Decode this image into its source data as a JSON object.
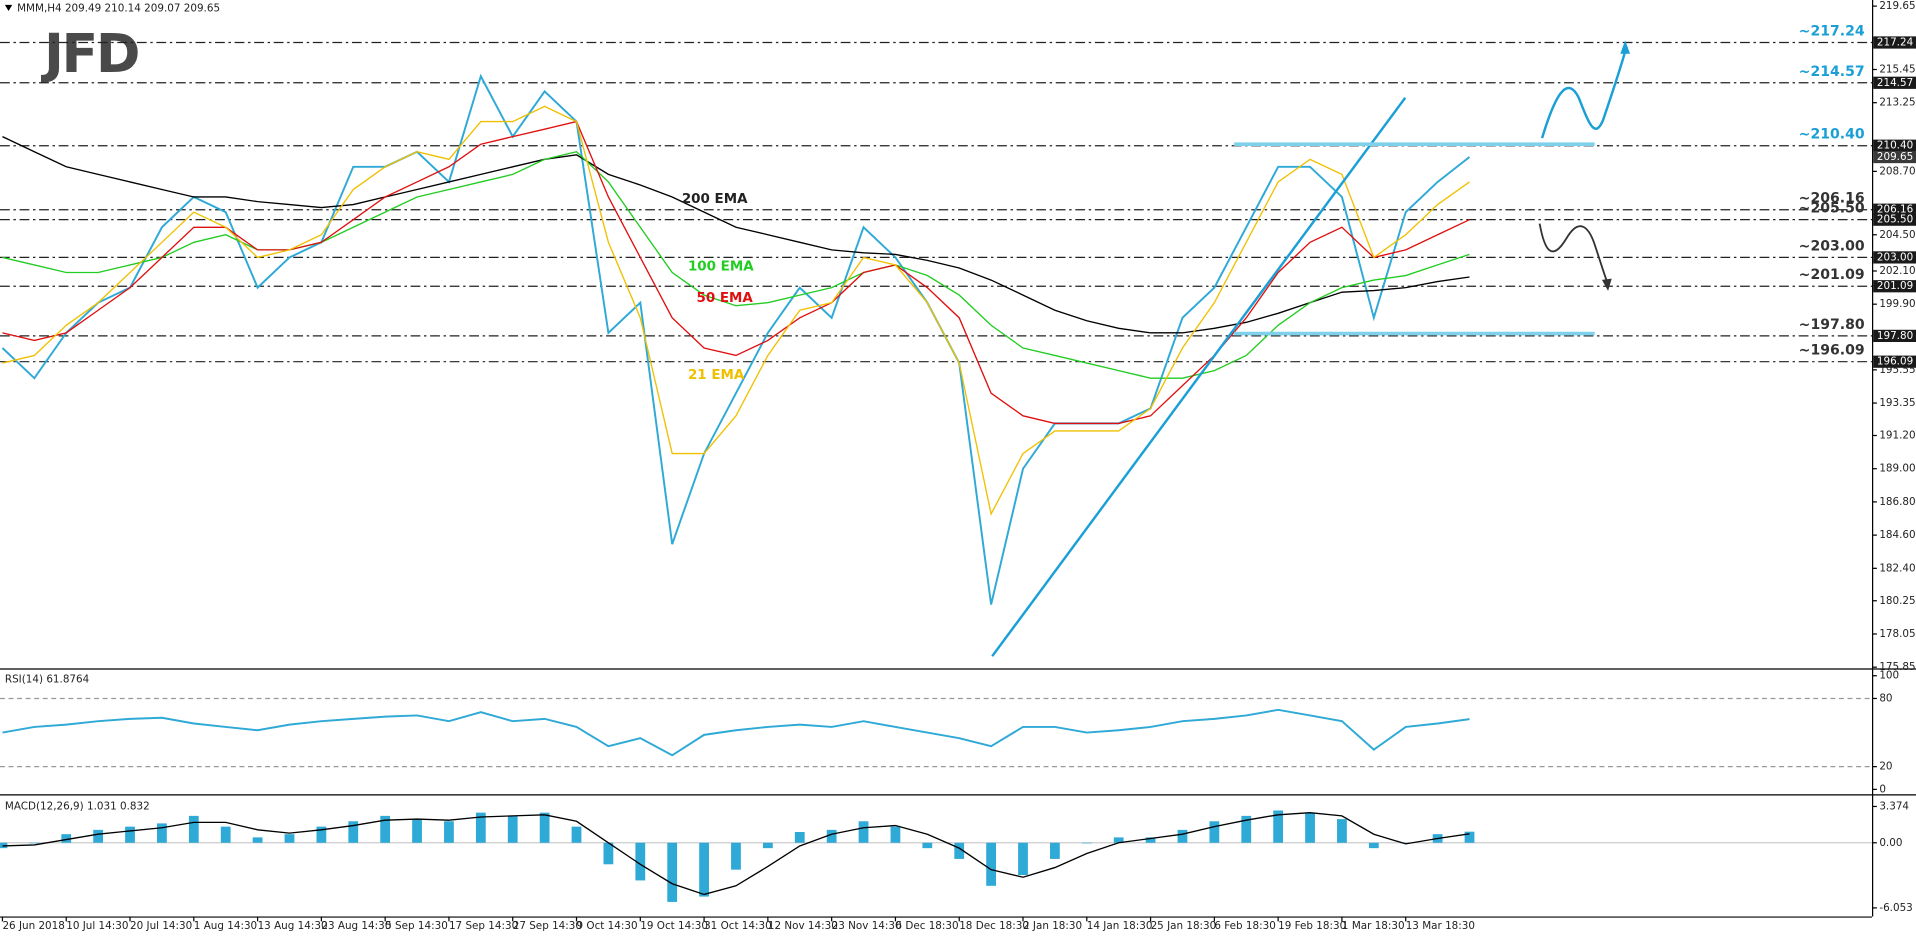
{
  "header": "MMM,H4 209.49 210.14 209.07 209.65",
  "logo": "JFD",
  "chart_data": [
    {
      "type": "line",
      "categories": [
        "26 Jun 2018",
        null,
        "10 Jul 14:30",
        null,
        "20 Jul 14:30",
        null,
        "1 Aug 14:30",
        null,
        "13 Aug 14:30",
        null,
        "23 Aug 14:30",
        null,
        "5 Sep 14:30",
        null,
        "17 Sep 14:30",
        null,
        "27 Sep 14:30",
        null,
        "9 Oct 14:30",
        null,
        "19 Oct 14:30",
        null,
        "31 Oct 14:30",
        null,
        "12 Nov 14:30",
        null,
        "23 Nov 14:30",
        null,
        "6 Dec 18:30",
        null,
        "18 Dec 18:30",
        null,
        "2 Jan 18:30",
        null,
        "14 Jan 18:30",
        null,
        "25 Jan 18:30",
        null,
        "6 Feb 18:30",
        null,
        "19 Feb 18:30",
        null,
        "1 Mar 18:30",
        null,
        "13 Mar 18:30",
        null,
        null
      ],
      "ylim": [
        175.85,
        219.65
      ],
      "yticks": [
        219.65,
        215.45,
        213.25,
        {
          "value": 208.7,
          "label": "208.70"
        },
        {
          "value": 204.5,
          "label": "204.50"
        },
        {
          "value": 202.1,
          "label": "202.10"
        },
        {
          "value": 199.9,
          "label": "199.90"
        },
        195.55,
        193.35,
        {
          "value": 191.2,
          "label": "191.20"
        },
        {
          "value": 189,
          "label": "189.00"
        },
        {
          "value": 186.8,
          "label": "186.80"
        },
        {
          "value": 184.6,
          "label": "184.60"
        },
        {
          "value": 182.4,
          "label": "182.40"
        },
        180.25,
        178.05,
        175.85
      ],
      "last_price": 209.65,
      "series": [
        {
          "color": "#2fa9d6",
          "values": [
            197,
            195,
            198,
            200,
            201,
            205,
            207,
            206,
            201,
            203,
            204,
            209,
            209,
            210,
            208,
            215,
            211,
            214,
            212,
            198,
            200,
            184,
            190,
            194,
            198,
            201,
            199,
            205,
            203,
            200,
            196,
            180,
            189,
            192,
            192,
            192,
            193,
            199,
            201,
            205,
            209,
            209,
            207,
            199,
            206,
            208,
            209.65
          ]
        },
        {
          "name": "200 EMA",
          "color": "#000000",
          "values": [
            211,
            210,
            209,
            208.5,
            208,
            207.5,
            207,
            207,
            206.7,
            206.5,
            206.3,
            206.5,
            207,
            207.5,
            208,
            208.5,
            209,
            209.5,
            209.8,
            208.5,
            207.8,
            207,
            206,
            205,
            204.5,
            204,
            203.5,
            203.3,
            203.2,
            202.8,
            202.3,
            201.5,
            200.5,
            199.5,
            198.8,
            198.3,
            198,
            198,
            198.3,
            198.7,
            199.3,
            200,
            200.7,
            200.8,
            201,
            201.4,
            201.7
          ]
        },
        {
          "name": "100 EMA",
          "color": "#22cc22",
          "values": [
            203,
            202.5,
            202,
            202,
            202.5,
            203,
            204,
            204.5,
            203.5,
            203.5,
            204,
            205,
            206,
            207,
            207.5,
            208,
            208.5,
            209.5,
            210,
            208,
            205,
            202,
            200.5,
            199.8,
            200,
            200.5,
            201,
            202,
            202.5,
            201.8,
            200.5,
            198.5,
            197,
            196.5,
            196,
            195.5,
            195,
            195,
            195.5,
            196.5,
            198.5,
            200,
            201,
            201.5,
            201.8,
            202.5,
            203.2
          ]
        },
        {
          "name": "50 EMA",
          "color": "#e01010",
          "values": [
            198,
            197.5,
            198,
            199.5,
            201,
            203,
            205,
            205,
            203.5,
            203.5,
            204,
            205.5,
            207,
            208,
            209,
            210.5,
            211,
            211.5,
            212,
            207,
            203,
            199,
            197,
            196.5,
            197.5,
            199,
            200,
            202,
            202.5,
            201,
            199,
            194,
            192.5,
            192,
            192,
            192,
            192.5,
            194.5,
            196.5,
            199,
            202,
            204,
            205,
            203,
            203.5,
            204.5,
            205.5
          ]
        },
        {
          "name": "21 EMA",
          "color": "#f0c000",
          "values": [
            196,
            196.5,
            198.5,
            200,
            202,
            204,
            206,
            205,
            203,
            203.5,
            204.5,
            207.5,
            209,
            210,
            209.5,
            212,
            212,
            213,
            212,
            204,
            199,
            190,
            190,
            192.5,
            196.5,
            199.5,
            200,
            203,
            202.5,
            200,
            196,
            186,
            190,
            191.5,
            191.5,
            191.5,
            193,
            197,
            200,
            204,
            208,
            209.5,
            208.5,
            203,
            204.5,
            206.5,
            208
          ]
        }
      ],
      "levels": [
        {
          "value": 217.24,
          "label": "~217.24",
          "axis_label": "217.24",
          "color": "#1a9fd6"
        },
        {
          "value": 214.57,
          "label": "~214.57",
          "axis_label": "214.57",
          "color": "#1a9fd6"
        },
        {
          "value": 210.4,
          "label": "~210.40",
          "axis_label": "210.40",
          "color": "#1a9fd6"
        },
        {
          "value": 206.16,
          "label": "~206.16",
          "axis_label": "206.16",
          "color": "#333333"
        },
        {
          "value": 205.5,
          "label": "~205.50",
          "axis_label": "205.50",
          "color": "#333333"
        },
        {
          "value": 203,
          "label": "~203.00",
          "axis_label": "203.00",
          "color": "#333333"
        },
        {
          "value": 201.09,
          "label": "~201.09",
          "axis_label": "201.09",
          "color": "#333333"
        },
        {
          "value": 197.8,
          "label": "~197.80",
          "axis_label": "197.80",
          "color": "#333333"
        },
        {
          "value": 196.09,
          "label": "~196.09",
          "axis_label": "196.09",
          "color": "#333333"
        }
      ]
    },
    {
      "type": "line",
      "title": "RSI(14) 61.8764",
      "ylim": [
        0,
        100
      ],
      "yticks": [
        100,
        80,
        20,
        0
      ],
      "series": [
        {
          "color": "#2fa9d6",
          "values": [
            50,
            55,
            57,
            60,
            62,
            63,
            58,
            55,
            52,
            57,
            60,
            62,
            64,
            65,
            60,
            68,
            60,
            62,
            55,
            38,
            45,
            30,
            48,
            52,
            55,
            57,
            55,
            60,
            55,
            50,
            45,
            38,
            55,
            55,
            50,
            52,
            55,
            60,
            62,
            65,
            70,
            65,
            60,
            35,
            55,
            58,
            61.8764
          ]
        }
      ]
    },
    {
      "type": "bar",
      "title": "MACD(12,26,9) 1.031 0.832",
      "ylim": [
        -6.053,
        3.374
      ],
      "yticks": [
        3.374,
        {
          "value": 0,
          "label": "0.00"
        },
        -6.053
      ],
      "series": [
        {
          "type": "bar",
          "color": "#2fa9d6",
          "values": [
            -0.5,
            0,
            0.8,
            1.2,
            1.5,
            1.8,
            2.5,
            1.5,
            0.5,
            0.8,
            1.5,
            2,
            2.5,
            2.2,
            2,
            2.8,
            2.5,
            2.8,
            1.5,
            -2,
            -3.5,
            -5.5,
            -5,
            -2.5,
            -0.5,
            1,
            1.2,
            2,
            1.5,
            -0.5,
            -1.5,
            -4,
            -3,
            -1.5,
            0,
            0.5,
            0.5,
            1.2,
            2,
            2.5,
            3,
            2.8,
            2.2,
            -0.5,
            0,
            0.8,
            1.031
          ]
        },
        {
          "type": "line",
          "color": "#000000",
          "values": [
            -0.3,
            -0.2,
            0.3,
            0.8,
            1.1,
            1.4,
            1.9,
            1.9,
            1.2,
            0.9,
            1.2,
            1.6,
            2.1,
            2.2,
            2.1,
            2.4,
            2.5,
            2.6,
            2,
            0,
            -2,
            -3.8,
            -4.8,
            -4,
            -2.2,
            -0.3,
            0.8,
            1.4,
            1.6,
            0.8,
            -0.5,
            -2.5,
            -3.2,
            -2.3,
            -1,
            0,
            0.4,
            0.8,
            1.5,
            2.1,
            2.6,
            2.8,
            2.5,
            0.8,
            -0.1,
            0.4,
            0.832
          ]
        }
      ]
    }
  ]
}
